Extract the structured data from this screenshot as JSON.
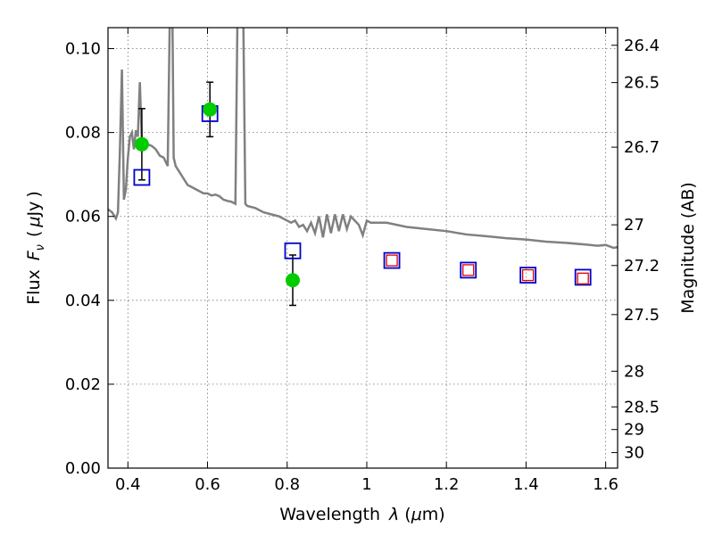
{
  "chart_data": {
    "type": "scatter",
    "xlabel_text": "Wavelength",
    "xlabel_symbol": "λ",
    "xlabel_unit_open": "(",
    "xlabel_unit_mu": "μ",
    "xlabel_unit_rest": "m)",
    "ylabel_text": "Flux",
    "ylabel_symbol": "F",
    "ylabel_subscript": "ν",
    "ylabel_unit_open": "(",
    "ylabel_unit_mu": "μ",
    "ylabel_unit_rest": "Jy",
    "ylabel_unit_close": ")",
    "y2label": "Magnitude (AB)",
    "xlim": [
      0.35,
      1.63
    ],
    "ylim": [
      0.0,
      0.105
    ],
    "grid": true,
    "x_ticks": [
      0.4,
      0.6,
      0.8,
      1.0,
      1.2,
      1.4,
      1.6
    ],
    "x_tick_labels": [
      "0.4",
      "0.6",
      "0.8",
      "1",
      "1.2",
      "1.4",
      "1.6"
    ],
    "y_ticks": [
      0.0,
      0.02,
      0.04,
      0.06,
      0.08,
      0.1
    ],
    "y_tick_labels": [
      "0.00",
      "0.02",
      "0.04",
      "0.06",
      "0.08",
      "0.10"
    ],
    "y2_ticks": [
      {
        "label": "26.4",
        "flux": 0.1008
      },
      {
        "label": "26.5",
        "flux": 0.0919
      },
      {
        "label": "26.7",
        "flux": 0.0765
      },
      {
        "label": "27",
        "flux": 0.058
      },
      {
        "label": "27.2",
        "flux": 0.0483
      },
      {
        "label": "27.5",
        "flux": 0.0366
      },
      {
        "label": "28",
        "flux": 0.0231
      },
      {
        "label": "28.5",
        "flux": 0.0146
      },
      {
        "label": "29",
        "flux": 0.0092
      },
      {
        "label": "30",
        "flux": 0.0037
      }
    ],
    "series": [
      {
        "kind": "observed",
        "color": "#00cc00",
        "points": [
          {
            "x": 0.435,
            "y": 0.0772,
            "err": 0.0085
          },
          {
            "x": 0.606,
            "y": 0.0855,
            "err": 0.0065
          },
          {
            "x": 0.814,
            "y": 0.0448,
            "err": 0.006
          }
        ]
      },
      {
        "kind": "model_square_blue",
        "color": "#0000cc",
        "points": [
          {
            "x": 0.435,
            "y": 0.0693
          },
          {
            "x": 0.606,
            "y": 0.0845
          },
          {
            "x": 0.814,
            "y": 0.0518
          },
          {
            "x": 1.063,
            "y": 0.0495
          },
          {
            "x": 1.255,
            "y": 0.0472
          },
          {
            "x": 1.405,
            "y": 0.046
          },
          {
            "x": 1.543,
            "y": 0.0455
          }
        ]
      },
      {
        "kind": "model_square_red",
        "color": "#dd0000",
        "points": [
          {
            "x": 1.063,
            "y": 0.0495
          },
          {
            "x": 1.255,
            "y": 0.0472
          },
          {
            "x": 1.405,
            "y": 0.046
          },
          {
            "x": 1.543,
            "y": 0.0452
          }
        ]
      },
      {
        "kind": "spectrum",
        "color": "#808080",
        "points": [
          [
            0.35,
            0.0617
          ],
          [
            0.36,
            0.061
          ],
          [
            0.37,
            0.0595
          ],
          [
            0.375,
            0.061
          ],
          [
            0.38,
            0.076
          ],
          [
            0.385,
            0.095
          ],
          [
            0.39,
            0.064
          ],
          [
            0.395,
            0.0665
          ],
          [
            0.4,
            0.074
          ],
          [
            0.405,
            0.079
          ],
          [
            0.41,
            0.08
          ],
          [
            0.415,
            0.076
          ],
          [
            0.42,
            0.0805
          ],
          [
            0.425,
            0.079
          ],
          [
            0.43,
            0.092
          ],
          [
            0.435,
            0.078
          ],
          [
            0.44,
            0.0775
          ],
          [
            0.45,
            0.0772
          ],
          [
            0.46,
            0.0768
          ],
          [
            0.47,
            0.076
          ],
          [
            0.48,
            0.0745
          ],
          [
            0.49,
            0.074
          ],
          [
            0.495,
            0.073
          ],
          [
            0.5,
            0.072
          ],
          [
            0.505,
            0.106
          ],
          [
            0.512,
            0.106
          ],
          [
            0.515,
            0.074
          ],
          [
            0.52,
            0.072
          ],
          [
            0.53,
            0.0705
          ],
          [
            0.54,
            0.069
          ],
          [
            0.55,
            0.0675
          ],
          [
            0.56,
            0.067
          ],
          [
            0.57,
            0.0665
          ],
          [
            0.58,
            0.066
          ],
          [
            0.59,
            0.0655
          ],
          [
            0.6,
            0.0655
          ],
          [
            0.61,
            0.065
          ],
          [
            0.62,
            0.0652
          ],
          [
            0.63,
            0.0648
          ],
          [
            0.64,
            0.064
          ],
          [
            0.65,
            0.0637
          ],
          [
            0.66,
            0.0635
          ],
          [
            0.67,
            0.063
          ],
          [
            0.675,
            0.106
          ],
          [
            0.69,
            0.106
          ],
          [
            0.695,
            0.063
          ],
          [
            0.7,
            0.0625
          ],
          [
            0.72,
            0.062
          ],
          [
            0.74,
            0.061
          ],
          [
            0.76,
            0.0605
          ],
          [
            0.78,
            0.06
          ],
          [
            0.8,
            0.059
          ],
          [
            0.81,
            0.0585
          ],
          [
            0.82,
            0.059
          ],
          [
            0.83,
            0.0575
          ],
          [
            0.84,
            0.058
          ],
          [
            0.85,
            0.0565
          ],
          [
            0.86,
            0.0585
          ],
          [
            0.87,
            0.056
          ],
          [
            0.88,
            0.06
          ],
          [
            0.89,
            0.055
          ],
          [
            0.9,
            0.0605
          ],
          [
            0.91,
            0.056
          ],
          [
            0.92,
            0.0605
          ],
          [
            0.93,
            0.0565
          ],
          [
            0.94,
            0.0605
          ],
          [
            0.95,
            0.057
          ],
          [
            0.96,
            0.06
          ],
          [
            0.98,
            0.058
          ],
          [
            0.99,
            0.0555
          ],
          [
            1.0,
            0.059
          ],
          [
            1.01,
            0.0585
          ],
          [
            1.05,
            0.0585
          ],
          [
            1.1,
            0.0575
          ],
          [
            1.15,
            0.057
          ],
          [
            1.2,
            0.0565
          ],
          [
            1.25,
            0.0557
          ],
          [
            1.3,
            0.0553
          ],
          [
            1.35,
            0.0548
          ],
          [
            1.4,
            0.0545
          ],
          [
            1.45,
            0.054
          ],
          [
            1.5,
            0.0537
          ],
          [
            1.55,
            0.0533
          ],
          [
            1.58,
            0.053
          ],
          [
            1.6,
            0.0532
          ],
          [
            1.62,
            0.0525
          ],
          [
            1.63,
            0.0527
          ]
        ]
      }
    ]
  }
}
